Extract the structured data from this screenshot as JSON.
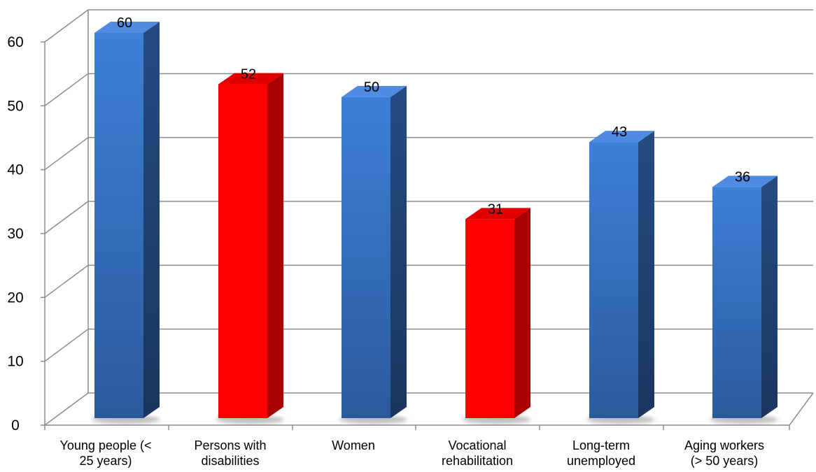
{
  "chart_data": {
    "type": "bar",
    "title": "",
    "xlabel": "",
    "ylabel": "",
    "ylim": [
      0,
      60
    ],
    "y_ticks": [
      0,
      10,
      20,
      30,
      40,
      50,
      60
    ],
    "grid": true,
    "legend": "none",
    "style": "3d-column",
    "categories": [
      [
        "Young people (<",
        "25 years)"
      ],
      [
        "Persons with",
        "disabilities"
      ],
      [
        "Women"
      ],
      [
        "Vocational",
        "rehabilitation"
      ],
      [
        "Long-term",
        "unemployed"
      ],
      [
        "Aging workers",
        "(> 50 years)"
      ]
    ],
    "values": [
      60,
      52,
      50,
      31,
      43,
      36
    ],
    "data_labels": [
      "60",
      "52",
      "50",
      "31",
      "43",
      "36"
    ],
    "bar_colors": [
      "blue",
      "red",
      "blue",
      "red",
      "blue",
      "blue"
    ]
  },
  "colors": {
    "blue_front": "#3a7bd5",
    "blue_front_dark": "#2a5596",
    "blue_side": "#1f3f6e",
    "blue_top": "#4f8be0",
    "red_front": "#ff0000",
    "red_side": "#a80000",
    "red_top": "#e00000",
    "grid": "#8c8c8c"
  }
}
